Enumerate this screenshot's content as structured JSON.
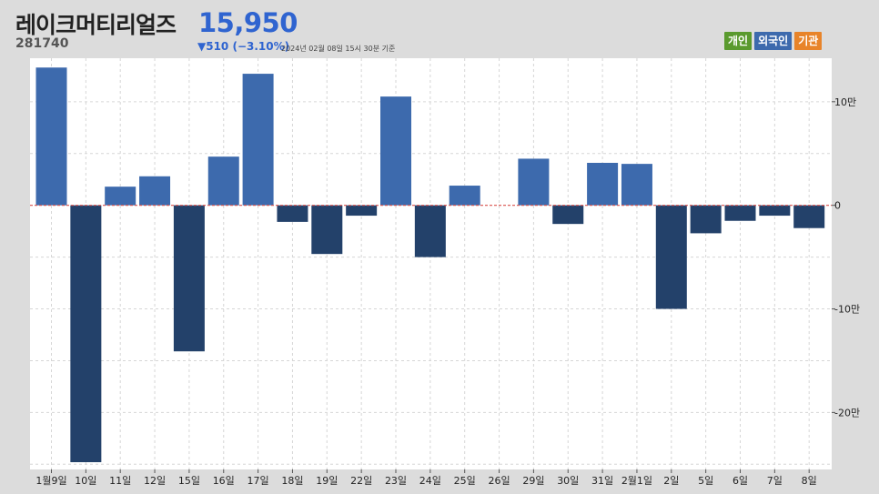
{
  "header": {
    "stock_name": "레이크머티리얼즈",
    "stock_code": "281740",
    "price": "15,950",
    "change": "▼510 (−3.10%)",
    "timestamp": "2024년 02월 08일 15시 30분 기준"
  },
  "legend": [
    {
      "label": "개인",
      "color": "#5a9a2e"
    },
    {
      "label": "외국인",
      "color": "#3d6aad"
    },
    {
      "label": "기관",
      "color": "#e8842a"
    }
  ],
  "colors": {
    "positive_bar": "#3d6aad",
    "negative_bar": "#23416a",
    "zero_line": "#d9534f"
  },
  "chart_data": {
    "type": "bar",
    "series": [
      {
        "name": "외국인",
        "values": [
          133000,
          -248000,
          18000,
          28000,
          -141000,
          47000,
          127000,
          -16000,
          -47000,
          -10000,
          105000,
          -50000,
          19000,
          0,
          45000,
          -18000,
          41000,
          40000,
          -100000,
          -27000,
          -15000,
          -10000,
          -22000
        ]
      }
    ],
    "categories": [
      "1월9일",
      "10일",
      "11일",
      "12일",
      "15일",
      "16일",
      "17일",
      "18일",
      "19일",
      "22일",
      "23일",
      "24일",
      "25일",
      "26일",
      "29일",
      "30일",
      "31일",
      "2월1일",
      "2일",
      "5일",
      "6일",
      "7일",
      "8일"
    ],
    "y_ticks": [
      {
        "value": 100000,
        "label": "10만"
      },
      {
        "value": 0,
        "label": "0"
      },
      {
        "value": -100000,
        "label": "-10만"
      },
      {
        "value": -200000,
        "label": "-20만"
      }
    ],
    "ylim": [
      -255000,
      142000
    ],
    "grid": true,
    "legend_position": "top-right"
  }
}
